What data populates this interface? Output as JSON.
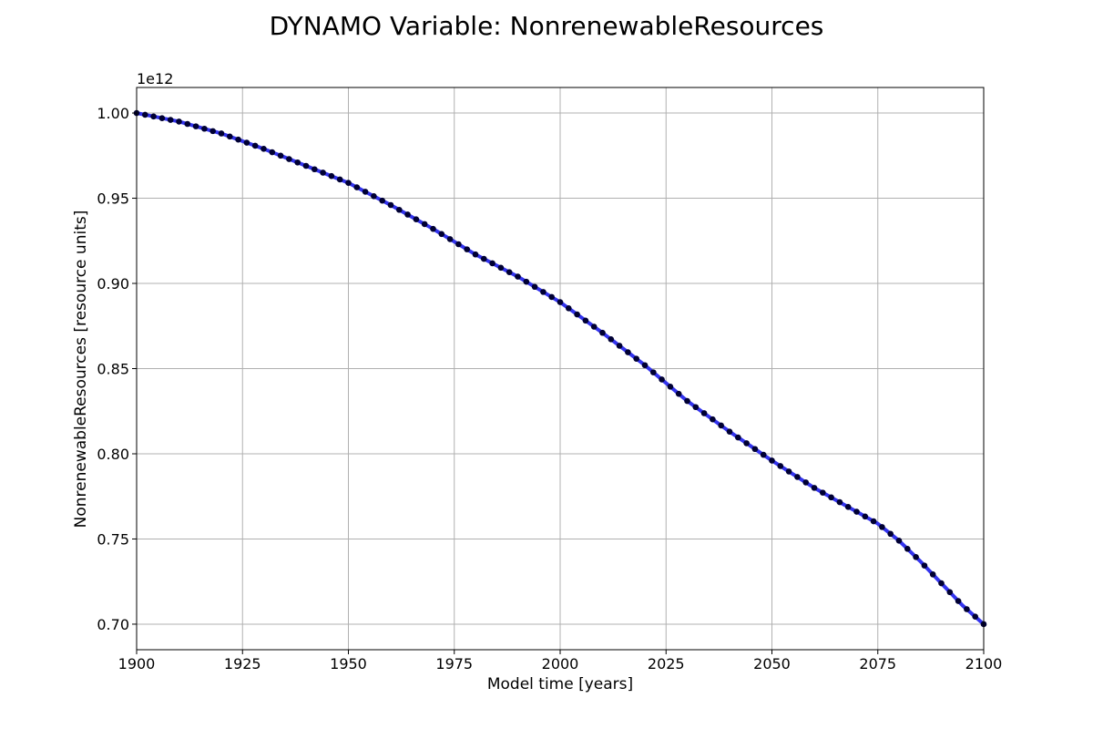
{
  "chart_data": {
    "type": "line",
    "title": "DYNAMO Variable: NonrenewableResources",
    "xlabel": "Model time [years]",
    "ylabel": "NonrenewableResources [resource units]",
    "y_offset_label": "1e12",
    "xlim": [
      1900,
      2100
    ],
    "ylim": [
      0.685,
      1.015
    ],
    "xticks": [
      1900,
      1925,
      1950,
      1975,
      2000,
      2025,
      2050,
      2075,
      2100
    ],
    "xtick_labels": [
      "1900",
      "1925",
      "1950",
      "1975",
      "2000",
      "2025",
      "2050",
      "2075",
      "2100"
    ],
    "yticks": [
      0.7,
      0.75,
      0.8,
      0.85,
      0.9,
      0.95,
      1.0
    ],
    "ytick_labels": [
      "0.70",
      "0.75",
      "0.80",
      "0.85",
      "0.90",
      "0.95",
      "1.00"
    ],
    "grid": true,
    "line_color": "#3333ee",
    "marker_color": "#000033",
    "series": [
      {
        "x": [
          1900,
          1910,
          1920,
          1930,
          1940,
          1950,
          1960,
          1970,
          1980,
          1990,
          2000,
          2010,
          2020,
          2030,
          2040,
          2050,
          2060,
          2070,
          2075,
          2080,
          2085,
          2090,
          2095,
          2100
        ],
        "y": [
          1.0,
          0.995,
          0.988,
          0.979,
          0.969,
          0.959,
          0.946,
          0.932,
          0.917,
          0.904,
          0.889,
          0.871,
          0.852,
          0.831,
          0.813,
          0.796,
          0.78,
          0.766,
          0.759,
          0.749,
          0.737,
          0.724,
          0.711,
          0.7
        ]
      }
    ]
  }
}
